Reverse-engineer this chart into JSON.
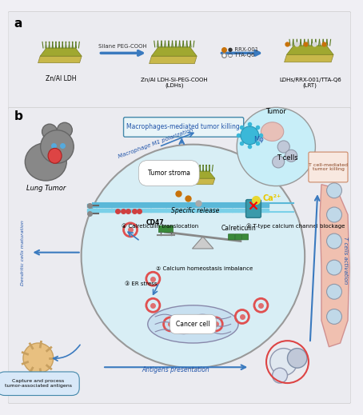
{
  "bg_color": "#f0eff4",
  "panel_a_bg": "#e8e8ee",
  "panel_b_bg": "#e8e8ee",
  "title_a": "a",
  "title_b": "b",
  "ldh1_label": "Zn/Al LDH",
  "ldh2_label": "Zn/Al LDH-Si-PEG-COOH\n(LDHs)",
  "ldh3_label": "LDHs/RRX-001/TTA-Q6\n(LRT)",
  "arrow1_label": "Silane PEG-COOH",
  "arrow2_label1": "● RRX-001",
  "arrow2_label2": "○ TTA-Q6",
  "macrophage_box": "Macrophages-mediated tumor killing",
  "macrophage_polar": "Macrophage M1 polarization",
  "tumor_label": "Tumor",
  "t_cells_label": "T cells",
  "m0_label": "Mφ",
  "t_cell_mediated": "T cell-mediated\ntumor killing",
  "lung_tumor_label": "Lung Tumor",
  "tumor_stroma": "Tumor stroma",
  "specific_release": "Specific release",
  "ca_label": "Ca²⁺",
  "label1": "① T-type calcium channel blockage",
  "label2": "② Calcium homeostasis imbalance",
  "label3": "③ ER stress",
  "label4": "④ Calreticulin translocation",
  "cd47_label": "CD47",
  "calreticulin_label": "Calreticulin",
  "cancer_cell": "Cancer cell",
  "dc_maturation": "Dendritic cells maturation",
  "capture_label": "Capture and process\ntumor-associated antigens",
  "antigens_label": "Antigens presentation",
  "t_cells_activation": "T cells activation",
  "arrow_color": "#3a7abf",
  "cell_circle_color": "#b8dce8",
  "membrane_color": "#7ec8d8",
  "circle_border": "#888888"
}
